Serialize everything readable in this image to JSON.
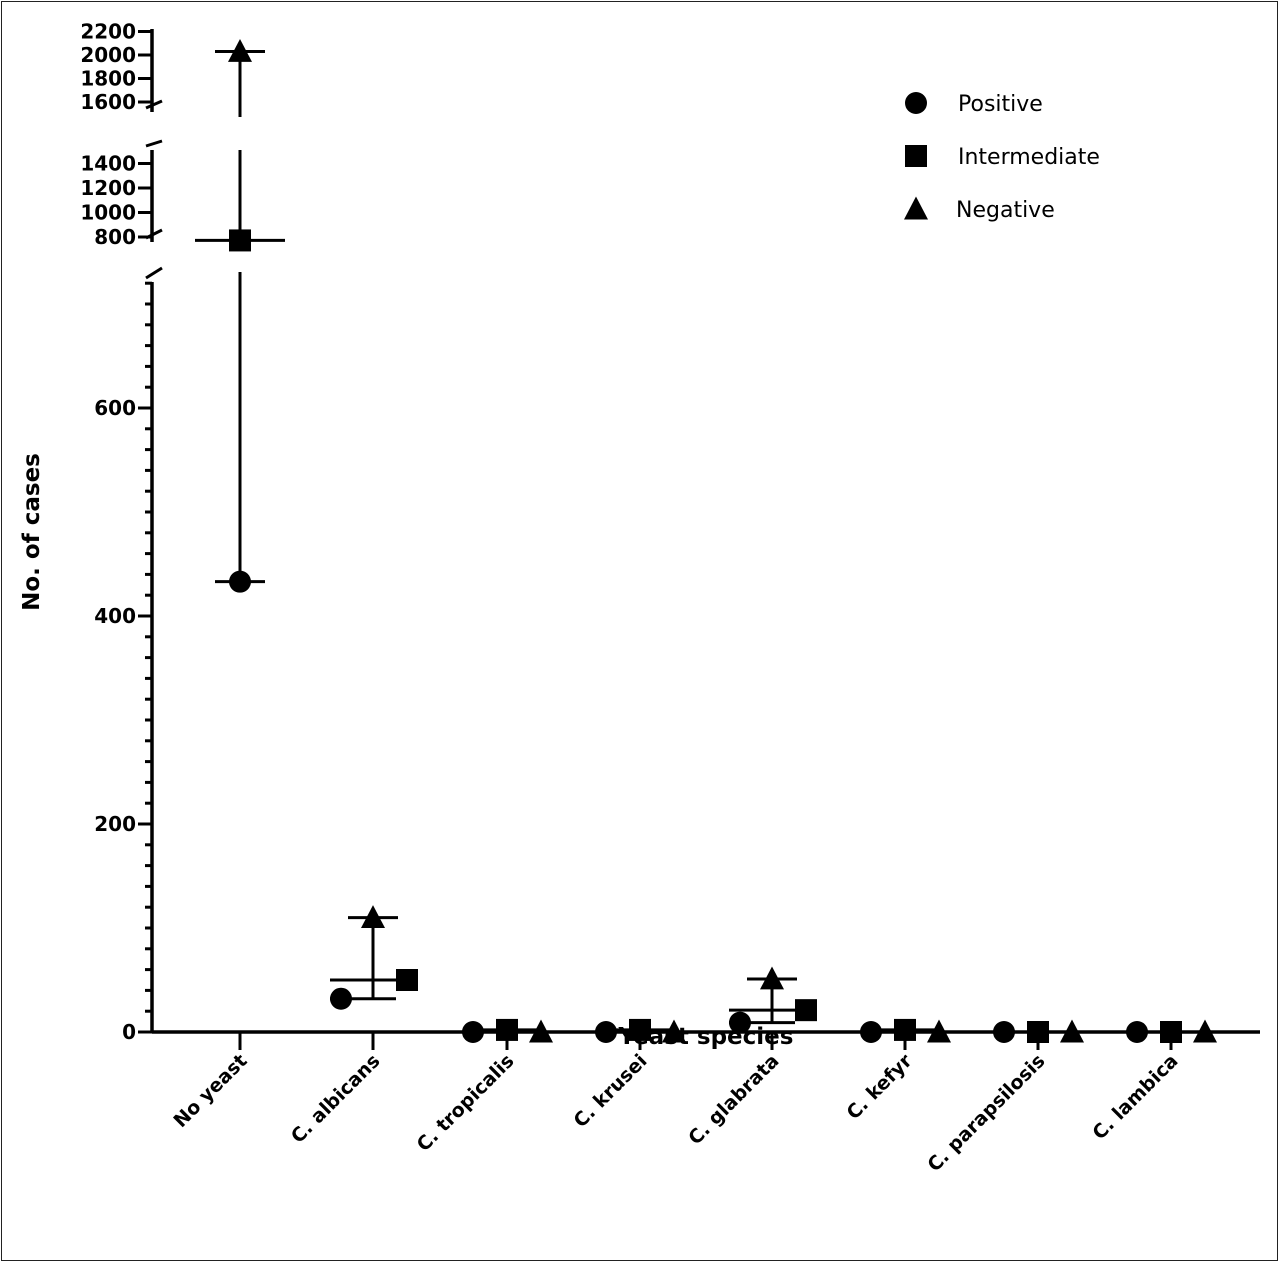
{
  "chart_data": {
    "type": "scatter",
    "title": "",
    "xlabel": "Yeast species",
    "ylabel": "No. of cases",
    "categories": [
      "No yeast",
      "C. albicans",
      "C. tropicalis",
      "C. krusei",
      "C. glabrata",
      "C. kefyr",
      "C. parapsilosis",
      "C. lambica"
    ],
    "series": [
      {
        "name": "Positive",
        "marker": "circle",
        "values": [
          433,
          32,
          0,
          0,
          9,
          0,
          0,
          0
        ]
      },
      {
        "name": "Intermediate",
        "marker": "square",
        "values": [
          772,
          50,
          2,
          2,
          21,
          2,
          0,
          0
        ]
      },
      {
        "name": "Negative",
        "marker": "triangle",
        "values": [
          2030,
          110,
          0,
          0,
          51,
          0,
          0,
          0
        ]
      }
    ],
    "y_axis_segments": [
      {
        "range": [
          0,
          720
        ],
        "ticks": [
          0,
          200,
          400,
          600
        ]
      },
      {
        "range": [
          760,
          1450
        ],
        "ticks": [
          800,
          1000,
          1200,
          1400
        ]
      },
      {
        "range": [
          1500,
          2200
        ],
        "ticks": [
          1600,
          1800,
          2000,
          2200
        ]
      }
    ],
    "legend_position": "top-right",
    "grid": false
  }
}
